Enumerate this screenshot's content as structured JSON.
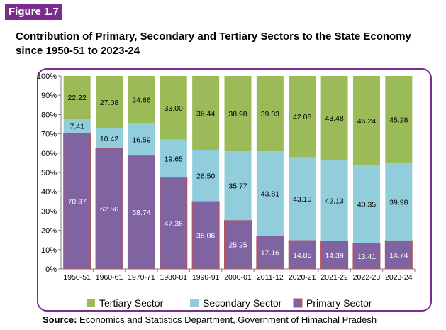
{
  "figure_label": "Figure 1.7",
  "title_line1": "Contribution of Primary, Secondary and Tertiary Sectors to the State Economy",
  "title_line2": "since 1950-51 to 2023-24",
  "source_label": "Source:",
  "source_text": "Economics and Statistics Department, Government of Himachal Pradesh",
  "colors": {
    "primary": "#8064a2",
    "secondary": "#92cddc",
    "tertiary": "#9bbb59",
    "primary_border": "#c0504d",
    "frame": "#7b2d8b"
  },
  "chart_data": {
    "type": "bar",
    "stacked": true,
    "categories": [
      "1950-51",
      "1960-61",
      "1970-71",
      "1980-81",
      "1990-91",
      "2000-01",
      "2011-12",
      "2020-21",
      "2021-22",
      "2022-23",
      "2023-24"
    ],
    "series": [
      {
        "name": "Primary Sector",
        "values": [
          70.37,
          62.5,
          58.74,
          47.36,
          35.06,
          25.25,
          17.16,
          14.85,
          14.39,
          13.41,
          14.74
        ]
      },
      {
        "name": "Secondary Sector",
        "values": [
          7.41,
          10.42,
          16.59,
          19.65,
          26.5,
          35.77,
          43.81,
          43.1,
          42.13,
          40.35,
          39.98
        ]
      },
      {
        "name": "Tertiary Sector",
        "values": [
          22.22,
          27.08,
          24.66,
          33.0,
          38.44,
          38.98,
          39.03,
          42.05,
          43.48,
          46.24,
          45.28
        ]
      }
    ],
    "ylim": [
      0,
      100
    ],
    "yticks": [
      "0%",
      "10%",
      "20%",
      "30%",
      "40%",
      "50%",
      "60%",
      "70%",
      "80%",
      "90%",
      "100%"
    ],
    "value_labels": {
      "Primary Sector": [
        "70.37",
        "62.50",
        "58.74",
        "47.36",
        "35.06",
        "25.25",
        "17.16",
        "14.85",
        "14.39",
        "13.41",
        "14.74"
      ],
      "Secondary Sector": [
        "7.41",
        "10.42",
        "16.59",
        "19.65",
        "26.50",
        "35.77",
        "43.81",
        "43.10",
        "42.13",
        "40.35",
        "39.98"
      ],
      "Tertiary Sector": [
        "22.22",
        "27.08",
        "24.66",
        "33.00",
        "38.44",
        "38.98",
        "39.03",
        "42.05",
        "43.48",
        "46.24",
        "45.28"
      ]
    },
    "legend": [
      "Tertiary Sector",
      "Secondary Sector",
      "Primary Sector"
    ],
    "legend_position": "bottom",
    "grid": false
  }
}
